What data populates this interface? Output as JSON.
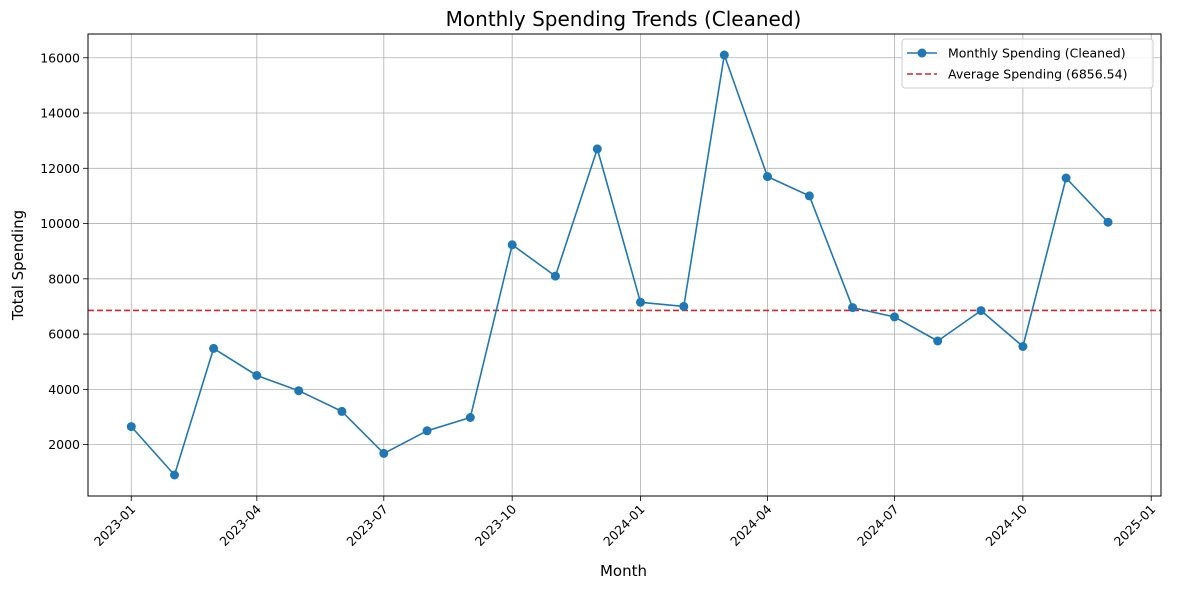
{
  "chart_data": {
    "type": "line",
    "title": "Monthly Spending Trends (Cleaned)",
    "xlabel": "Month",
    "ylabel": "Total Spending",
    "x": [
      "2023-01",
      "2023-02",
      "2023-03",
      "2023-04",
      "2023-05",
      "2023-06",
      "2023-07",
      "2023-08",
      "2023-09",
      "2023-10",
      "2023-11",
      "2023-12",
      "2024-01",
      "2024-02",
      "2024-03",
      "2024-04",
      "2024-05",
      "2024-06",
      "2024-07",
      "2024-08",
      "2024-09",
      "2024-10",
      "2024-11",
      "2024-12"
    ],
    "series": [
      {
        "name": "Monthly Spending (Cleaned)",
        "color": "#1f77b4",
        "marker": "circle",
        "values": [
          2650,
          900,
          5480,
          4500,
          3950,
          3200,
          1680,
          2500,
          2980,
          9230,
          8100,
          12700,
          7150,
          7000,
          16100,
          11700,
          11000,
          6960,
          6620,
          5750,
          6850,
          5550,
          11650,
          10050
        ]
      }
    ],
    "reference_lines": [
      {
        "name": "Average Spending (6856.54)",
        "value": 6856.54,
        "color": "#d62728",
        "style": "dashed"
      }
    ],
    "x_ticks": [
      "2023-01",
      "2023-04",
      "2023-07",
      "2023-10",
      "2024-01",
      "2024-04",
      "2024-07",
      "2024-10",
      "2025-01"
    ],
    "y_ticks": [
      2000,
      4000,
      6000,
      8000,
      10000,
      12000,
      14000,
      16000
    ],
    "xlim": [
      "2022-12-01",
      "2025-01-08"
    ],
    "ylim": [
      140,
      16860
    ],
    "grid": true,
    "legend_position": "top-right"
  }
}
